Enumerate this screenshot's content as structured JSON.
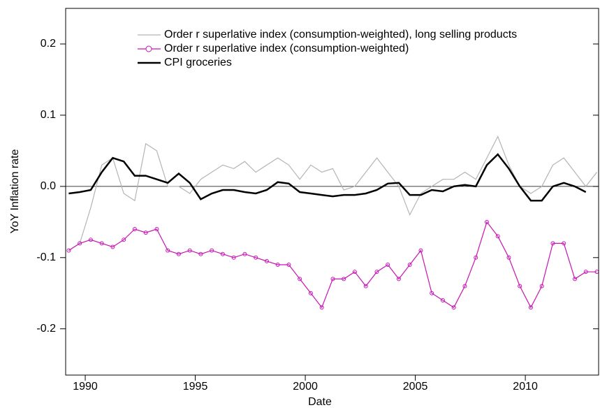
{
  "chart_data": {
    "type": "line",
    "xlabel": "Date",
    "ylabel": "YoY Inflation rate",
    "x": [
      1989.25,
      1989.75,
      1990.25,
      1990.75,
      1991.25,
      1991.75,
      1992.25,
      1992.75,
      1993.25,
      1993.75,
      1994.25,
      1994.75,
      1995.25,
      1995.75,
      1996.25,
      1996.75,
      1997.25,
      1997.75,
      1998.25,
      1998.75,
      1999.25,
      1999.75,
      2000.25,
      2000.75,
      2001.25,
      2001.75,
      2002.25,
      2002.75,
      2003.25,
      2003.75,
      2004.25,
      2004.75,
      2005.25,
      2005.75,
      2006.25,
      2006.75,
      2007.25,
      2007.75,
      2008.25,
      2008.75,
      2009.25,
      2009.75,
      2010.25,
      2010.75,
      2011.25,
      2011.75,
      2012.25,
      2012.75,
      2013.25
    ],
    "series": [
      {
        "name": "Order r superlative index (consumption-weighted), long selling products",
        "color": "#b4b4b4",
        "marker": false,
        "width": 1.2,
        "values": [
          -0.09,
          -0.08,
          -0.03,
          0.03,
          0.04,
          -0.01,
          -0.02,
          0.06,
          0.05,
          0.0,
          0.0,
          -0.01,
          0.01,
          0.02,
          0.03,
          0.025,
          0.035,
          0.02,
          0.03,
          0.04,
          0.03,
          0.01,
          0.03,
          0.02,
          0.025,
          -0.005,
          0.0,
          0.02,
          0.04,
          0.02,
          0.0,
          -0.04,
          -0.01,
          0.0,
          0.01,
          0.01,
          0.02,
          0.01,
          0.04,
          0.07,
          0.03,
          0.0,
          -0.01,
          0.0,
          0.03,
          0.04,
          0.02,
          0.0,
          0.02
        ]
      },
      {
        "name": "Order r superlative index (consumption-weighted)",
        "color": "#c814b4",
        "marker": true,
        "width": 1.2,
        "values": [
          -0.09,
          -0.08,
          -0.075,
          -0.08,
          -0.085,
          -0.075,
          -0.06,
          -0.065,
          -0.06,
          -0.09,
          -0.095,
          -0.09,
          -0.095,
          -0.09,
          -0.095,
          -0.1,
          -0.095,
          -0.1,
          -0.105,
          -0.11,
          -0.11,
          -0.13,
          -0.15,
          -0.17,
          -0.13,
          -0.13,
          -0.12,
          -0.14,
          -0.12,
          -0.11,
          -0.13,
          -0.11,
          -0.09,
          -0.15,
          -0.16,
          -0.17,
          -0.14,
          -0.1,
          -0.05,
          -0.07,
          -0.1,
          -0.14,
          -0.17,
          -0.14,
          -0.08,
          -0.08,
          -0.13,
          -0.12,
          -0.12
        ]
      },
      {
        "name": "CPI groceries",
        "color": "#000000",
        "marker": false,
        "width": 2.5,
        "values": [
          -0.01,
          -0.008,
          -0.005,
          0.02,
          0.04,
          0.035,
          0.015,
          0.015,
          0.01,
          0.005,
          0.018,
          0.005,
          -0.018,
          -0.01,
          -0.005,
          -0.005,
          -0.008,
          -0.01,
          -0.005,
          0.006,
          0.004,
          -0.008,
          -0.01,
          -0.012,
          -0.014,
          -0.012,
          -0.012,
          -0.01,
          -0.005,
          0.004,
          0.005,
          -0.012,
          -0.012,
          -0.005,
          -0.007,
          0.0,
          0.002,
          0.0,
          0.03,
          0.045,
          0.025,
          0.0,
          -0.02,
          -0.02,
          0.0,
          0.005,
          0.0,
          -0.008,
          null
        ]
      }
    ],
    "xlim": [
      1989.11,
      2013.33
    ],
    "xticks": [
      1990,
      1995,
      2000,
      2005,
      2010
    ],
    "ylim": [
      -0.265,
      0.25
    ],
    "yticks": [
      -0.2,
      -0.1,
      {
        "value": 0,
        "label": "0.0"
      },
      0.1,
      0.2
    ],
    "zero_line": true,
    "legend": "top-right"
  }
}
